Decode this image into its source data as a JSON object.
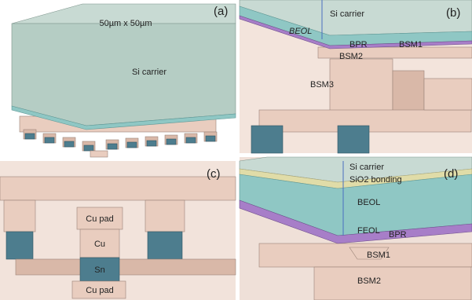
{
  "panels": [
    {
      "label": "(a)",
      "texts": [
        "50µm x 50µm",
        "Si carrier"
      ]
    },
    {
      "label": "(b)",
      "texts": [
        "Si carrier",
        "BEOL",
        "BPR",
        "BSM1",
        "BSM2",
        "BSM3"
      ]
    },
    {
      "label": "(c)",
      "texts": [
        "Cu pad",
        "Cu",
        "Sn",
        "Cu pad"
      ]
    },
    {
      "label": "(d)",
      "texts": [
        "Si carrier",
        "SiO2 bonding",
        "BEOL",
        "FEOL",
        "BPR",
        "BSM1",
        "BSM2"
      ]
    }
  ]
}
